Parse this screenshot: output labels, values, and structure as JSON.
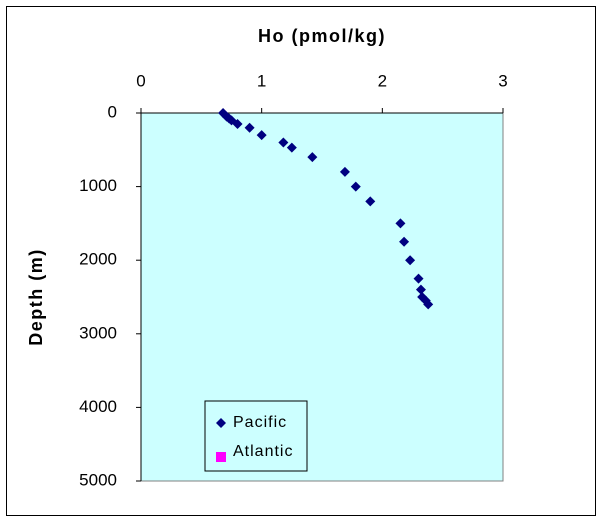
{
  "chart_data": {
    "type": "scatter",
    "xlabel": "Ho (pmol/kg)",
    "ylabel": "Depth (m)",
    "xlim": [
      0,
      3
    ],
    "ylim": [
      0,
      5000
    ],
    "y_inverted": true,
    "x_axis_position": "top",
    "x_ticks": [
      "0",
      "1",
      "2",
      "3"
    ],
    "y_ticks": [
      "0",
      "1000",
      "2000",
      "3000",
      "4000",
      "5000"
    ],
    "grid": false,
    "legend_position": "bottom-left",
    "plot_background": "#ccffff",
    "series": [
      {
        "name": "Pacific",
        "marker": "diamond",
        "color": "#000080",
        "points": [
          {
            "x": 0.68,
            "y": 0
          },
          {
            "x": 0.71,
            "y": 50
          },
          {
            "x": 0.73,
            "y": 75
          },
          {
            "x": 0.75,
            "y": 100
          },
          {
            "x": 0.8,
            "y": 150
          },
          {
            "x": 0.9,
            "y": 200
          },
          {
            "x": 1.0,
            "y": 300
          },
          {
            "x": 1.18,
            "y": 400
          },
          {
            "x": 1.25,
            "y": 470
          },
          {
            "x": 1.42,
            "y": 600
          },
          {
            "x": 1.69,
            "y": 800
          },
          {
            "x": 1.78,
            "y": 1000
          },
          {
            "x": 1.9,
            "y": 1200
          },
          {
            "x": 2.15,
            "y": 1500
          },
          {
            "x": 2.18,
            "y": 1750
          },
          {
            "x": 2.23,
            "y": 2000
          },
          {
            "x": 2.3,
            "y": 2250
          },
          {
            "x": 2.32,
            "y": 2400
          },
          {
            "x": 2.33,
            "y": 2500
          },
          {
            "x": 2.36,
            "y": 2550
          },
          {
            "x": 2.38,
            "y": 2600
          }
        ]
      },
      {
        "name": "Atlantic",
        "marker": "square",
        "color": "#ff00ff",
        "points": []
      }
    ]
  }
}
